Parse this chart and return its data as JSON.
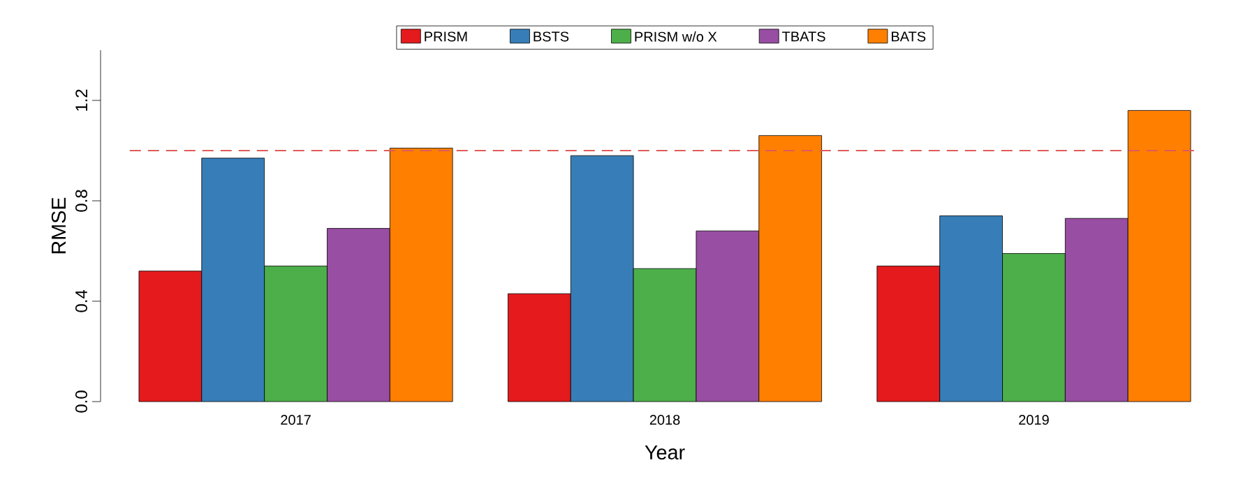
{
  "chart_data": {
    "type": "bar",
    "xlabel": "Year",
    "ylabel": "RMSE",
    "categories": [
      "2017",
      "2018",
      "2019"
    ],
    "series": [
      {
        "name": "PRISM",
        "color": "#e41a1c",
        "values": [
          0.52,
          0.43,
          0.54
        ]
      },
      {
        "name": "BSTS",
        "color": "#377eb8",
        "values": [
          0.97,
          0.98,
          0.74
        ]
      },
      {
        "name": "PRISM w/o X",
        "color": "#4daf4a",
        "values": [
          0.54,
          0.53,
          0.59
        ]
      },
      {
        "name": "TBATS",
        "color": "#984ea3",
        "values": [
          0.69,
          0.68,
          0.73
        ]
      },
      {
        "name": "BATS",
        "color": "#ff7f00",
        "values": [
          1.01,
          1.06,
          1.16
        ]
      }
    ],
    "ylim": [
      0,
      1.4
    ],
    "yticks": [
      {
        "value": 0,
        "label": "0.0"
      },
      0.4,
      0.8,
      1.2
    ],
    "ref_lines": [
      {
        "axis": "y",
        "value": 1,
        "color": "#e05a5a",
        "line_style": "dashed"
      }
    ],
    "legend": "top",
    "grid": false
  }
}
